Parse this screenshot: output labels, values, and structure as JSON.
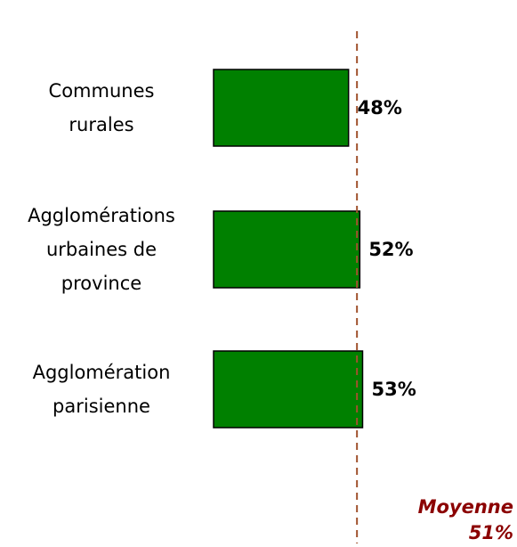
{
  "chart_data": {
    "type": "bar",
    "orientation": "horizontal",
    "categories": [
      "Communes\nrurales",
      "Agglomérations\nurbaines de\nprovince",
      "Agglomération\nparisienne"
    ],
    "values": [
      48,
      52,
      53
    ],
    "value_labels": [
      "48%",
      "52%",
      "53%"
    ],
    "color": "#008000",
    "xlim": [
      0,
      100
    ],
    "reference_line": {
      "label": "Moyenne",
      "value": 51,
      "value_label": "51%",
      "color": "#a0522d"
    }
  }
}
